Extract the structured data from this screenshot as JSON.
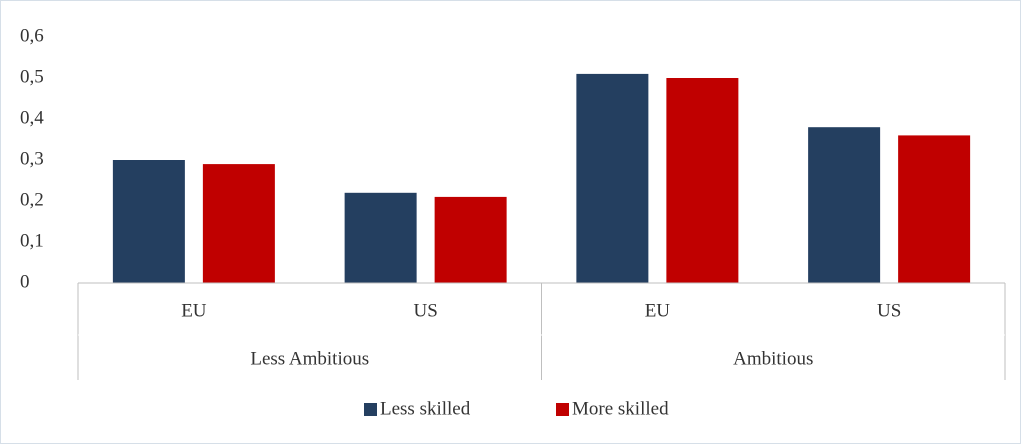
{
  "chart_data": {
    "type": "bar",
    "categories": [
      "EU",
      "US",
      "EU",
      "US"
    ],
    "groups": [
      "Less Ambitious",
      "Ambitious"
    ],
    "series": [
      {
        "name": "Less skilled",
        "color": "#243f60",
        "values": [
          0.3,
          0.22,
          0.51,
          0.38
        ]
      },
      {
        "name": "More skilled",
        "color": "#c00000",
        "values": [
          0.29,
          0.21,
          0.5,
          0.36
        ]
      }
    ],
    "ylim": [
      0,
      0.6
    ],
    "yticks": [
      0,
      {
        "value": 0.1,
        "label": "0,1"
      },
      {
        "value": 0.2,
        "label": "0,2"
      },
      {
        "value": 0.3,
        "label": "0,3"
      },
      {
        "value": 0.4,
        "label": "0,4"
      },
      {
        "value": 0.5,
        "label": "0,5"
      },
      {
        "value": 0.6,
        "label": "0,6"
      }
    ],
    "legend": "bottom"
  }
}
